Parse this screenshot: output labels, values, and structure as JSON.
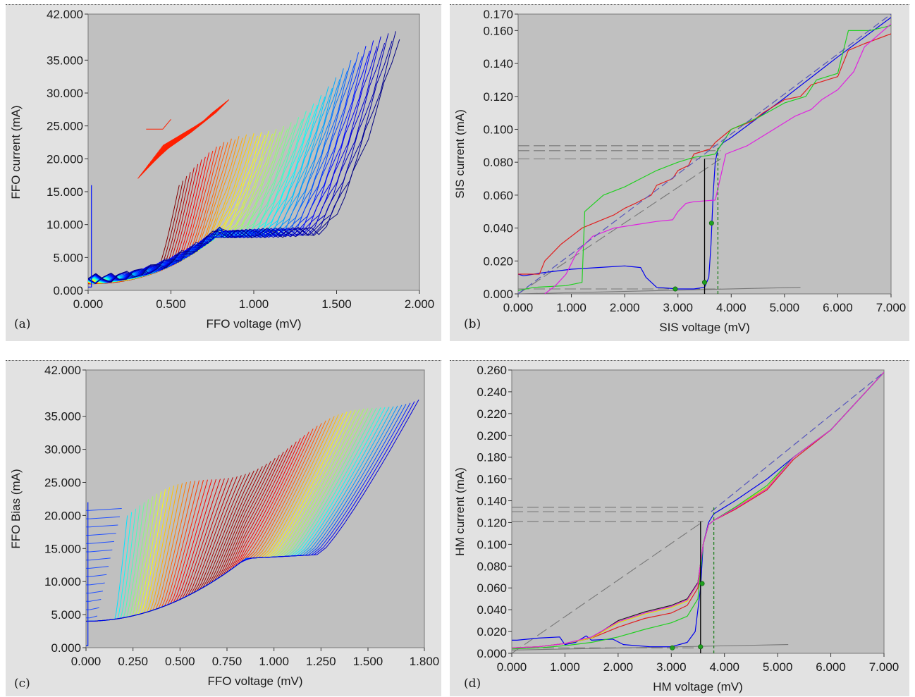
{
  "chart_data": [
    {
      "panel_label": "(a)",
      "type": "line",
      "xlabel": "FFO voltage (mV)",
      "ylabel": "FFO current (mA)",
      "xlim": [
        0,
        2
      ],
      "ylim": [
        0,
        42
      ],
      "x_ticks": [
        0,
        0.5,
        1.0,
        1.5,
        2.0
      ],
      "x_tick_labels": [
        "0.000",
        "0.500",
        "1.000",
        "1.500",
        "2.000"
      ],
      "y_ticks": [
        0,
        5,
        10,
        15,
        20,
        25,
        30,
        35,
        42
      ],
      "y_tick_labels": [
        "0.000",
        "5.000",
        "10.000",
        "15.000",
        "20.000",
        "25.000",
        "30.000",
        "35.000",
        "42.000"
      ],
      "background": "#c0c0c0",
      "family": "ffo_iv_a",
      "series_count": 60,
      "colormap": "jet",
      "grid": false
    },
    {
      "panel_label": "(b)",
      "type": "line",
      "xlabel": "SIS voltage (mV)",
      "ylabel": "SIS current (mA)",
      "xlim": [
        0,
        7
      ],
      "ylim": [
        0,
        0.17
      ],
      "x_ticks": [
        0,
        1,
        2,
        3,
        4,
        5,
        6,
        7
      ],
      "x_tick_labels": [
        "0.000",
        "1.000",
        "2.000",
        "3.000",
        "4.000",
        "5.000",
        "6.000",
        "7.000"
      ],
      "y_ticks": [
        0,
        0.02,
        0.04,
        0.06,
        0.08,
        0.1,
        0.12,
        0.14,
        0.16,
        0.17
      ],
      "y_tick_labels": [
        "0.000",
        "0.020",
        "0.040",
        "0.060",
        "0.080",
        "0.100",
        "0.120",
        "0.140",
        "0.160",
        "0.170"
      ],
      "background": "#c0c0c0",
      "grid": false,
      "dashed_h_levels": [
        0.082,
        0.087,
        0.09,
        0.003
      ],
      "dashed_gray_line": {
        "x": [
          0,
          3.8
        ],
        "y": [
          0,
          0.082
        ]
      },
      "gray_line": {
        "x": [
          0,
          5.3
        ],
        "y": [
          0.0,
          0.004
        ]
      },
      "marker_points": {
        "x": [
          2.95,
          3.5,
          3.63
        ],
        "y": [
          0.003,
          0.007,
          0.043
        ],
        "color": "#20a020"
      },
      "series": [
        {
          "color": "#0000ee",
          "x": [
            0,
            0.1,
            0.5,
            1.0,
            1.5,
            2.0,
            2.3,
            2.4,
            2.6,
            3.0,
            3.3,
            3.5,
            3.58,
            3.62,
            3.66,
            3.7,
            3.75,
            3.85,
            4.0,
            5.0,
            6.0,
            7.0
          ],
          "y": [
            0.012,
            0.011,
            0.013,
            0.015,
            0.016,
            0.017,
            0.016,
            0.01,
            0.004,
            0.003,
            0.003,
            0.004,
            0.01,
            0.03,
            0.06,
            0.08,
            0.088,
            0.092,
            0.095,
            0.119,
            0.144,
            0.168
          ]
        },
        {
          "color": "#e02020",
          "x": [
            0,
            0.4,
            0.5,
            0.8,
            1.2,
            1.5,
            1.8,
            2.0,
            2.2,
            2.5,
            2.6,
            2.9,
            3.0,
            3.2,
            3.3,
            3.6,
            3.7,
            4.0,
            4.4,
            4.6,
            5.0,
            5.3,
            5.5,
            6.0,
            6.2,
            6.5,
            7.0
          ],
          "y": [
            0.012,
            0.012,
            0.02,
            0.03,
            0.04,
            0.044,
            0.048,
            0.052,
            0.055,
            0.06,
            0.066,
            0.07,
            0.075,
            0.078,
            0.085,
            0.088,
            0.092,
            0.1,
            0.105,
            0.11,
            0.118,
            0.12,
            0.127,
            0.132,
            0.148,
            0.152,
            0.158
          ]
        },
        {
          "color": "#20d020",
          "x": [
            0,
            0.3,
            0.9,
            1.2,
            1.25,
            1.6,
            2.0,
            2.3,
            2.6,
            3.0,
            3.3,
            3.55,
            3.7,
            4.0,
            4.5,
            5.0,
            5.4,
            5.6,
            6.0,
            6.2,
            6.6,
            7.0
          ],
          "y": [
            0.002,
            0.004,
            0.005,
            0.007,
            0.05,
            0.06,
            0.065,
            0.07,
            0.075,
            0.08,
            0.083,
            0.084,
            0.085,
            0.1,
            0.107,
            0.116,
            0.12,
            0.13,
            0.134,
            0.16,
            0.16,
            0.163
          ]
        },
        {
          "color": "#e020e0",
          "x": [
            0.5,
            0.7,
            0.9,
            1.1,
            1.4,
            1.8,
            2.2,
            2.6,
            2.9,
            3.0,
            3.15,
            3.3,
            3.7,
            3.9,
            4.3,
            4.8,
            5.2,
            5.5,
            5.7,
            6.0,
            6.3,
            6.5,
            7.0
          ],
          "y": [
            0.0,
            0.005,
            0.012,
            0.025,
            0.035,
            0.04,
            0.042,
            0.044,
            0.045,
            0.05,
            0.055,
            0.056,
            0.057,
            0.085,
            0.09,
            0.1,
            0.108,
            0.112,
            0.118,
            0.124,
            0.135,
            0.15,
            0.164
          ]
        },
        {
          "color": "#5555bb",
          "dash": true,
          "x": [
            0,
            7.0
          ],
          "y": [
            0,
            0.17
          ]
        }
      ]
    },
    {
      "panel_label": "(c)",
      "type": "line",
      "xlabel": "FFO voltage (mV)",
      "ylabel": "FFO Bias (mA)",
      "xlim": [
        0,
        1.8
      ],
      "ylim": [
        0,
        42
      ],
      "x_ticks": [
        0,
        0.25,
        0.5,
        0.75,
        1.0,
        1.25,
        1.5,
        1.8
      ],
      "x_tick_labels": [
        "0.000",
        "0.250",
        "0.500",
        "0.750",
        "1.000",
        "1.250",
        "1.500",
        "1.800"
      ],
      "y_ticks": [
        0,
        5,
        10,
        15,
        20,
        25,
        30,
        35,
        42
      ],
      "y_tick_labels": [
        "0.000",
        "5.000",
        "10.000",
        "15.000",
        "20.000",
        "25.000",
        "30.000",
        "35.000",
        "42.000"
      ],
      "background": "#c0c0c0",
      "family": "ffo_iv_c",
      "series_count": 70,
      "colormap": "jet",
      "grid": false
    },
    {
      "panel_label": "(d)",
      "type": "line",
      "xlabel": "HM voltage (mV)",
      "ylabel": "HM current (mA)",
      "xlim": [
        0,
        7
      ],
      "ylim": [
        0,
        0.26
      ],
      "x_ticks": [
        0,
        1,
        2,
        3,
        4,
        5,
        6,
        7
      ],
      "x_tick_labels": [
        "0.000",
        "1.000",
        "2.000",
        "3.000",
        "4.000",
        "5.000",
        "6.000",
        "7.000"
      ],
      "y_ticks": [
        0,
        0.02,
        0.04,
        0.06,
        0.08,
        0.1,
        0.12,
        0.14,
        0.16,
        0.18,
        0.2,
        0.22,
        0.24,
        0.26
      ],
      "y_tick_labels": [
        "0.000",
        "0.020",
        "0.040",
        "0.060",
        "0.080",
        "0.100",
        "0.120",
        "0.140",
        "0.160",
        "0.180",
        "0.200",
        "0.220",
        "0.240",
        "0.260"
      ],
      "background": "#c0c0c0",
      "grid": false,
      "dashed_h_levels": [
        0.121,
        0.13,
        0.134,
        0.005
      ],
      "dashed_gray_line": {
        "x": [
          0,
          3.6
        ],
        "y": [
          0,
          0.121
        ]
      },
      "gray_line": {
        "x": [
          0,
          5.2
        ],
        "y": [
          0.003,
          0.008
        ]
      },
      "marker_points": {
        "x": [
          3.02,
          3.55,
          3.58
        ],
        "y": [
          0.005,
          0.006,
          0.064
        ],
        "color": "#20a020"
      },
      "series": [
        {
          "color": "#0000ee",
          "x": [
            0,
            0.1,
            0.5,
            0.9,
            1.0,
            1.2,
            1.4,
            1.5,
            1.9,
            2.1,
            2.6,
            3.0,
            3.3,
            3.45,
            3.55,
            3.6,
            3.7,
            3.8,
            4.2,
            4.8,
            5.3,
            6.0,
            7.0
          ],
          "y": [
            0.012,
            0.012,
            0.014,
            0.015,
            0.008,
            0.01,
            0.016,
            0.012,
            0.013,
            0.008,
            0.006,
            0.006,
            0.01,
            0.02,
            0.06,
            0.1,
            0.12,
            0.128,
            0.14,
            0.16,
            0.18,
            0.205,
            0.258
          ]
        },
        {
          "color": "#e02020",
          "x": [
            0,
            0.5,
            1.0,
            1.5,
            2.0,
            2.5,
            3.0,
            3.3,
            3.5,
            3.6,
            3.7,
            3.8,
            4.2,
            4.8,
            5.3,
            6.0,
            7.0
          ],
          "y": [
            0.005,
            0.006,
            0.009,
            0.014,
            0.024,
            0.032,
            0.037,
            0.044,
            0.06,
            0.1,
            0.118,
            0.122,
            0.132,
            0.15,
            0.178,
            0.205,
            0.258
          ]
        },
        {
          "color": "#222222",
          "x": [
            0,
            0.5,
            1.0,
            1.5,
            2.0,
            2.5,
            3.0,
            3.3,
            3.5,
            3.6,
            3.7,
            3.8,
            4.2,
            4.8,
            5.3,
            6.0,
            7.0
          ],
          "y": [
            0.005,
            0.006,
            0.009,
            0.014,
            0.03,
            0.038,
            0.044,
            0.05,
            0.065,
            0.1,
            0.118,
            0.122,
            0.134,
            0.152,
            0.18,
            0.205,
            0.258
          ]
        },
        {
          "color": "#e0e000",
          "x": [
            0,
            0.5,
            1.0,
            1.5,
            2.0,
            2.5,
            3.0,
            3.3,
            3.5,
            3.6,
            3.7,
            3.8,
            4.2,
            4.8,
            5.3,
            6.0,
            7.0
          ],
          "y": [
            0.005,
            0.006,
            0.009,
            0.014,
            0.028,
            0.036,
            0.042,
            0.048,
            0.064,
            0.1,
            0.118,
            0.122,
            0.134,
            0.152,
            0.18,
            0.205,
            0.258
          ]
        },
        {
          "color": "#20d020",
          "x": [
            0,
            0.5,
            1.0,
            1.5,
            2.0,
            2.5,
            3.0,
            3.3,
            3.5,
            3.6,
            3.7,
            3.8,
            4.2,
            4.8,
            5.3,
            6.0,
            7.0
          ],
          "y": [
            0.004,
            0.005,
            0.007,
            0.01,
            0.015,
            0.022,
            0.028,
            0.034,
            0.05,
            0.1,
            0.118,
            0.122,
            0.134,
            0.154,
            0.18,
            0.205,
            0.258
          ]
        },
        {
          "color": "#e020e0",
          "x": [
            0,
            0.5,
            1.0,
            1.5,
            2.0,
            2.5,
            3.0,
            3.3,
            3.5,
            3.6,
            3.7,
            3.8,
            4.2,
            4.8,
            5.3,
            6.0,
            7.0
          ],
          "y": [
            0.005,
            0.006,
            0.009,
            0.015,
            0.029,
            0.037,
            0.043,
            0.049,
            0.064,
            0.1,
            0.118,
            0.122,
            0.133,
            0.151,
            0.18,
            0.205,
            0.258
          ]
        },
        {
          "color": "#5555bb",
          "dash": true,
          "x": [
            3.75,
            7.0
          ],
          "y": [
            0.13,
            0.258
          ]
        }
      ]
    }
  ]
}
